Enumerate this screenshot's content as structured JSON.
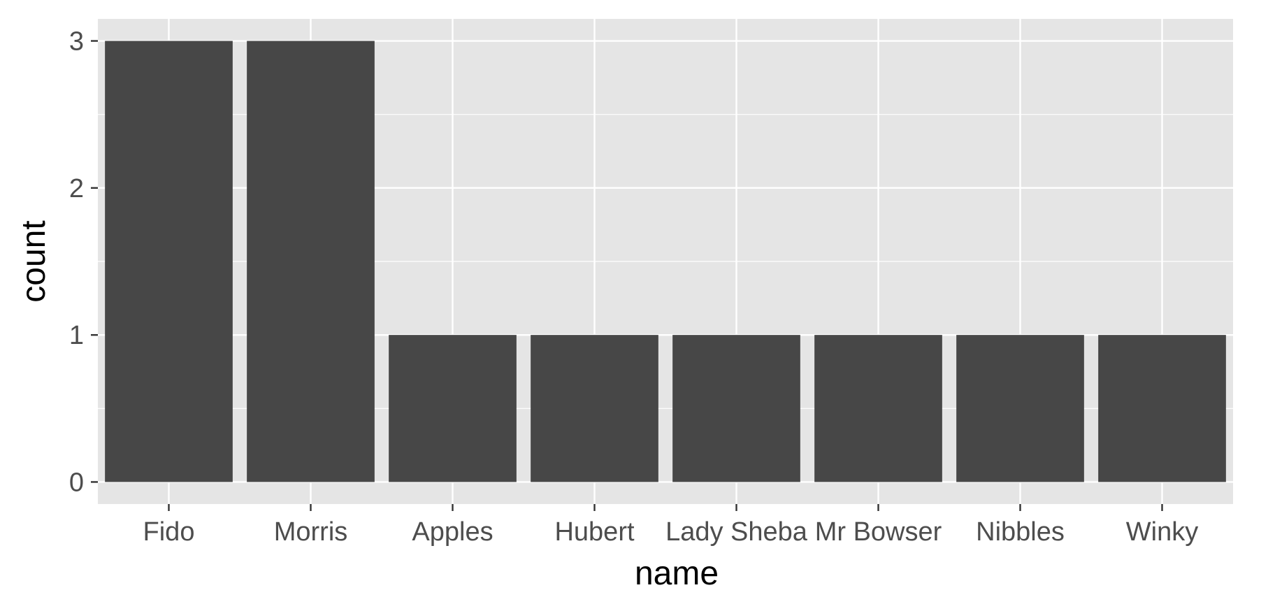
{
  "chart_data": {
    "type": "bar",
    "categories": [
      "Fido",
      "Morris",
      "Apples",
      "Hubert",
      "Lady Sheba",
      "Mr Bowser",
      "Nibbles",
      "Winky"
    ],
    "values": [
      3,
      3,
      1,
      1,
      1,
      1,
      1,
      1
    ],
    "xlabel": "name",
    "ylabel": "count",
    "yticks": [
      0,
      1,
      2,
      3
    ],
    "ylim": [
      -0.15,
      3.15
    ],
    "grid": true,
    "colors": {
      "bar": "#474747",
      "panel": "#e5e5e5",
      "grid": "#ffffff",
      "tick": "#333333"
    }
  }
}
